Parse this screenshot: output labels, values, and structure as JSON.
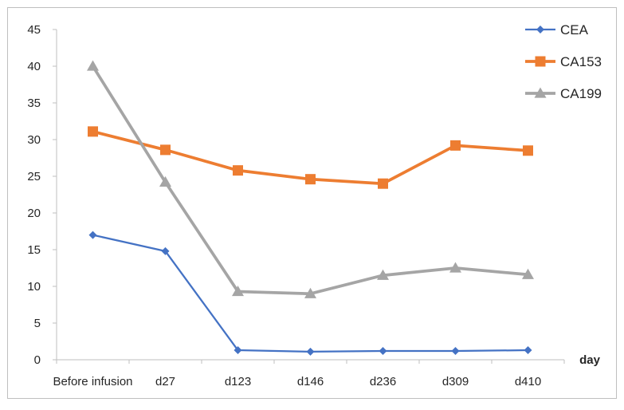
{
  "chart_data": {
    "type": "line",
    "categories": [
      "Before infusion",
      "d27",
      "d123",
      "d146",
      "d236",
      "d309",
      "d410"
    ],
    "xlabel": "day",
    "ylim": [
      0,
      45
    ],
    "yticks": [
      0,
      5,
      10,
      15,
      20,
      25,
      30,
      35,
      40,
      45
    ],
    "grid": false,
    "legend": "top-right",
    "series": [
      {
        "name": "CEA",
        "color": "#4472C4",
        "marker": "diamond",
        "values": [
          17.0,
          14.8,
          1.3,
          1.1,
          1.2,
          1.2,
          1.3
        ]
      },
      {
        "name": "CA153",
        "color": "#ED7D31",
        "marker": "square",
        "values": [
          31.1,
          28.6,
          25.8,
          24.6,
          24.0,
          29.2,
          28.5
        ]
      },
      {
        "name": "CA199",
        "color": "#A5A5A5",
        "marker": "triangle",
        "values": [
          40.0,
          24.2,
          9.3,
          9.0,
          11.5,
          12.5,
          11.6
        ]
      }
    ]
  }
}
